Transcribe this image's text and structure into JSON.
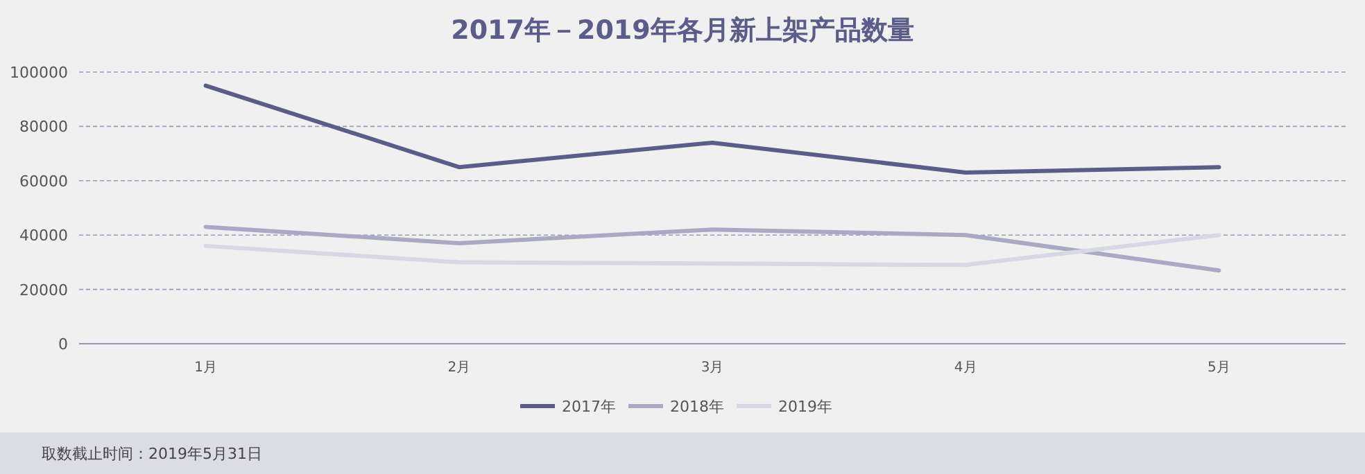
{
  "chart_data": {
    "type": "line",
    "title": "2017年－2019年各月新上架产品数量",
    "categories": [
      "1月",
      "2月",
      "3月",
      "4月",
      "5月"
    ],
    "series": [
      {
        "name": "2017年",
        "color": "#5c5c8a",
        "values": [
          95000,
          65000,
          74000,
          63000,
          65000
        ]
      },
      {
        "name": "2018年",
        "color": "#a9a9c4",
        "values": [
          43000,
          37000,
          42000,
          40000,
          27000
        ]
      },
      {
        "name": "2019年",
        "color": "#d8d8e4",
        "values": [
          36000,
          30000,
          29500,
          29000,
          40000
        ]
      }
    ],
    "ylim": [
      0,
      100000
    ],
    "yticks": [
      0,
      20000,
      40000,
      60000,
      80000,
      100000
    ],
    "grid": "y",
    "legend": "bottom",
    "marker": "none",
    "line_style": "solid",
    "annotations": [
      "取数截止时间：2019年5月31日"
    ]
  }
}
